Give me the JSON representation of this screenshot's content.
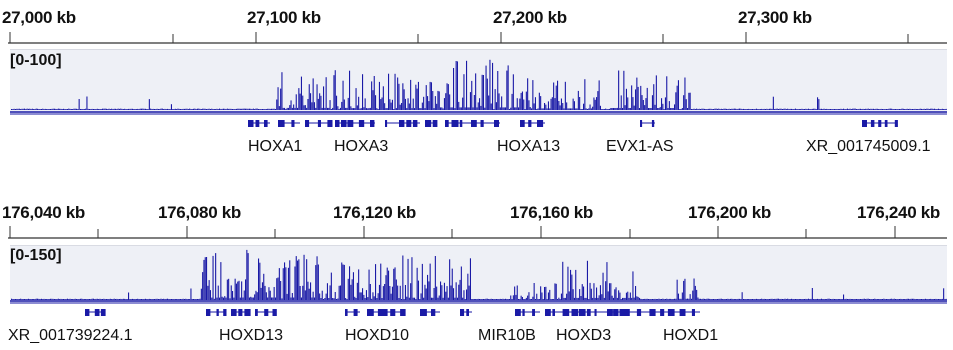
{
  "colors": {
    "signal": "#1a1aa6",
    "gene": "#1a1aa6",
    "track_bg": "#eef0f6"
  },
  "panels": [
    {
      "ruler_labels": [
        "27,000 kb",
        "27,100 kb",
        "27,200 kb",
        "27,300 kb"
      ],
      "data_range": "[0-100]",
      "gene_labels": [
        "HOXA1",
        "HOXA3",
        "HOXA13",
        "EVX1-AS",
        "XR_001745009.1"
      ]
    },
    {
      "ruler_labels": [
        "176,040 kb",
        "176,080 kb",
        "176,120 kb",
        "176,160 kb",
        "176,200 kb",
        "176,240 kb"
      ],
      "data_range": "[0-150]",
      "gene_labels": [
        "XR_001739224.1",
        "HOXD13",
        "HOXD10",
        "MIR10B",
        "HOXD3",
        "HOXD1"
      ]
    }
  ]
}
